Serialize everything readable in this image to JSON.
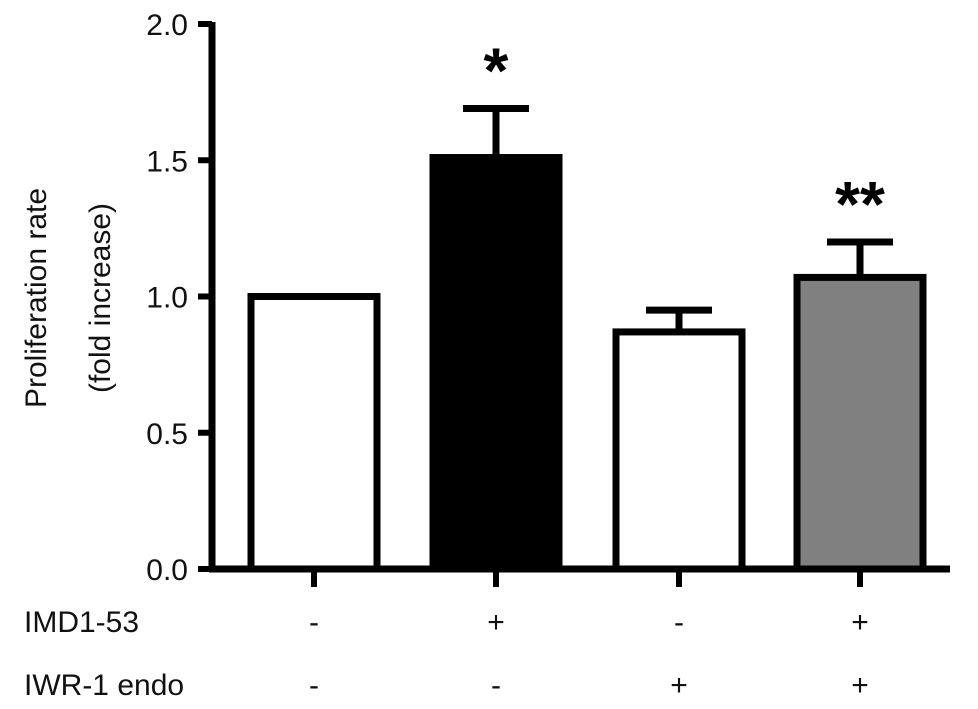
{
  "chart_data": {
    "type": "bar",
    "ylabel": [
      "Proliferation rate",
      "(fold increase)"
    ],
    "ylim": [
      0,
      2.0
    ],
    "yticks": [
      0.0,
      0.5,
      1.0,
      1.5,
      2.0
    ],
    "ytick_labels": [
      "0.0",
      "0.5",
      "1.0",
      "1.5",
      "2.0"
    ],
    "grid": false,
    "legend": "none",
    "bars": [
      {
        "value": 1.0,
        "error": 0.0,
        "fill": "#ffffff",
        "significance": ""
      },
      {
        "value": 1.51,
        "error": 0.18,
        "fill": "#000000",
        "significance": "*"
      },
      {
        "value": 0.87,
        "error": 0.08,
        "fill": "#ffffff",
        "significance": ""
      },
      {
        "value": 1.07,
        "error": 0.13,
        "fill": "#808080",
        "significance": "**"
      }
    ],
    "conditions": [
      {
        "label": "IMD1-53",
        "values": [
          "-",
          "+",
          "-",
          "+"
        ]
      },
      {
        "label": "IWR-1 endo",
        "values": [
          "-",
          "-",
          "+",
          "+"
        ]
      }
    ]
  }
}
